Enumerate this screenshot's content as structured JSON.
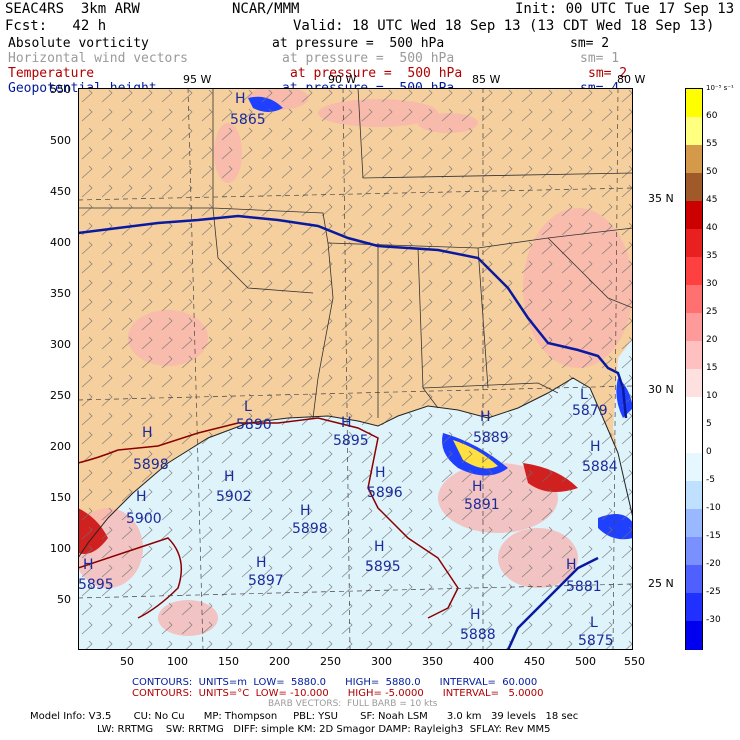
{
  "header": {
    "left1": "SEAC4RS  3km ARW",
    "center1": "NCAR/MMM",
    "right1": "Init: 00 UTC Tue 17 Sep 13",
    "left2": "Fcst:   42 h",
    "right2": "Valid: 18 UTC Wed 18 Sep 13 (13 CDT Wed 18 Sep 13)",
    "fields": [
      {
        "name": "Absolute vorticity",
        "pressure": "at pressure =  500 hPa",
        "sm": "sm= 2",
        "color": "#000000"
      },
      {
        "name": "Horizontal wind vectors",
        "pressure": "at pressure =  500 hPa",
        "sm": "sm= 1",
        "color": "#9a9a9a"
      },
      {
        "name": "Temperature",
        "pressure": "at pressure =  500 hPa",
        "sm": "sm= 2",
        "color": "#b00000"
      },
      {
        "name": "Geopotential height",
        "pressure": "at pressure =  500 hPa",
        "sm": "sm= 4",
        "color": "#001a9a"
      }
    ]
  },
  "map": {
    "lon_labels": [
      "95 W",
      "90 W",
      "85 W",
      "80 W"
    ],
    "lat_labels": [
      "35 N",
      "30 N",
      "25 N"
    ],
    "y_ticks": [
      "550",
      "500",
      "450",
      "400",
      "350",
      "300",
      "250",
      "200",
      "150",
      "100",
      "50"
    ],
    "x_ticks": [
      "50",
      "100",
      "150",
      "200",
      "250",
      "300",
      "350",
      "400",
      "450",
      "500",
      "550"
    ],
    "highs": [
      {
        "mark": "H",
        "value": "5865"
      },
      {
        "mark": "H",
        "value": "5889"
      },
      {
        "mark": "H",
        "value": "5895"
      },
      {
        "mark": "H",
        "value": "5902"
      },
      {
        "mark": "H",
        "value": "5898"
      },
      {
        "mark": "H",
        "value": "5896"
      },
      {
        "mark": "H",
        "value": "5891"
      },
      {
        "mark": "H",
        "value": "5898"
      },
      {
        "mark": "H",
        "value": "5897"
      },
      {
        "mark": "H",
        "value": "5895"
      },
      {
        "mark": "H",
        "value": "5881"
      },
      {
        "mark": "H",
        "value": "5884"
      },
      {
        "mark": "H",
        "value": "5888"
      },
      {
        "mark": "H",
        "value": "5900"
      },
      {
        "mark": "H",
        "value": "5895"
      }
    ],
    "lows": [
      {
        "mark": "L",
        "value": "5890"
      },
      {
        "mark": "L",
        "value": "5879"
      },
      {
        "mark": "L",
        "value": "5875"
      }
    ]
  },
  "colorbar": {
    "top_label": "10⁻⁵ s⁻¹",
    "levels": [
      "60",
      "55",
      "50",
      "45",
      "40",
      "35",
      "30",
      "25",
      "20",
      "15",
      "10",
      "5",
      "0",
      "-5",
      "-10",
      "-15",
      "-20",
      "-25",
      "-30"
    ],
    "colors": [
      "#ffff00",
      "#ffff80",
      "#d49a4a",
      "#a05a2a",
      "#cc0000",
      "#e82020",
      "#ff4040",
      "#ff7070",
      "#ff9a9a",
      "#ffc0c0",
      "#ffe0e0",
      "#ffffff",
      "#ffffff",
      "#e6f7ff",
      "#c0e0ff",
      "#9ab8ff",
      "#7a90ff",
      "#5060ff",
      "#2030ff",
      "#0000ee"
    ]
  },
  "footer": {
    "contours1": "CONTOURS:  UNITS=m  LOW=  5880.0      HIGH=  5880.0      INTERVAL=  60.000",
    "contours2": "CONTOURS:  UNITS=°C  LOW= -10.000      HIGH= -5.0000      INTERVAL=   5.0000",
    "barb": "BARB VECTORS:  FULL BARB = 10 kts",
    "model1": "Model Info: V3.5       CU: No Cu      MP: Thompson     PBL: YSU       SF: Noah LSM      3.0 km   39 levels   18 sec",
    "model2": "LW: RRTMG    SW: RRTMG   DIFF: simple KM: 2D Smagor DAMP: Rayleigh3  SFLAY: Rev MM5"
  }
}
